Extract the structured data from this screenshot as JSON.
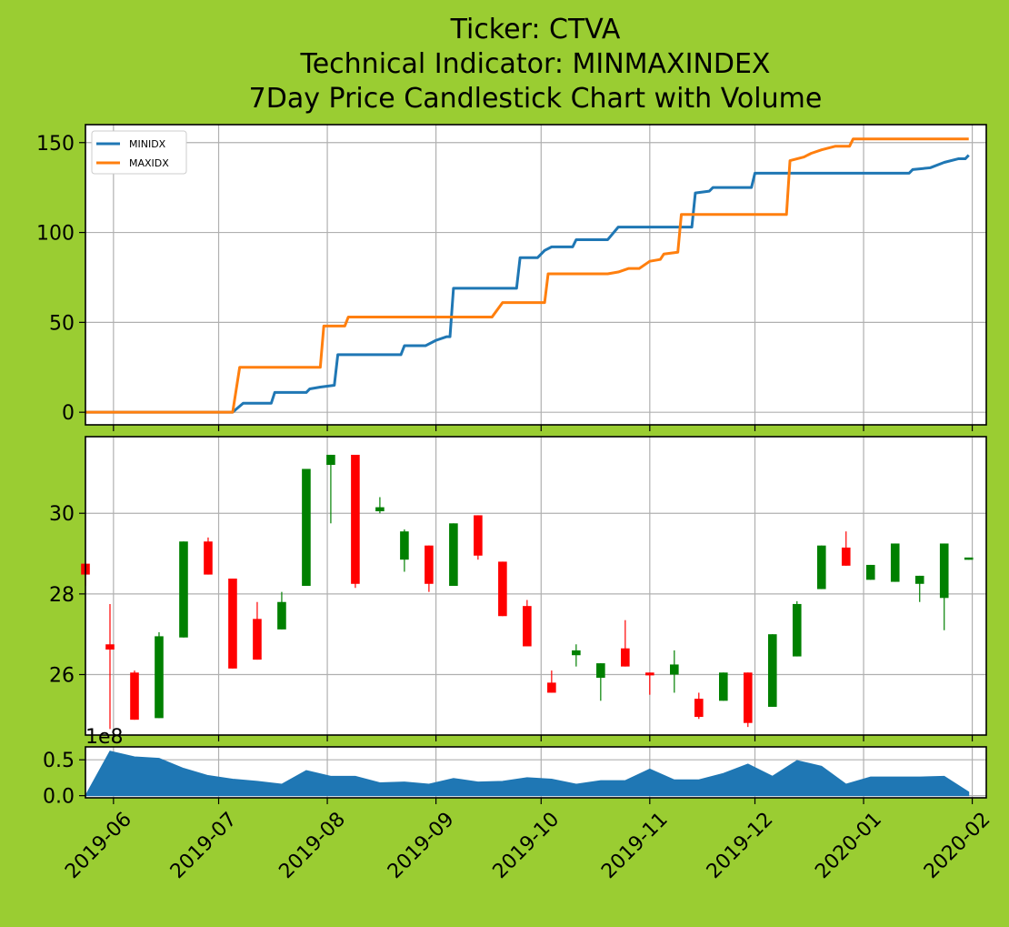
{
  "chart_data": {
    "type": "candlestick",
    "title_lines": [
      "Ticker: CTVA",
      "Technical Indicator: MINMAXINDEX",
      "7Day Price Candlestick Chart with Volume"
    ],
    "x_ticks": [
      "2019-06",
      "2019-07",
      "2019-08",
      "2019-09",
      "2019-10",
      "2019-11",
      "2019-12",
      "2020-01",
      "2020-02"
    ],
    "x_range": [
      "2019-05-24",
      "2020-02-05"
    ],
    "grid": true,
    "indicator": {
      "ylim": [
        -7,
        160
      ],
      "yticks": [
        0,
        50,
        100,
        150
      ],
      "legend_position": "upper-left",
      "series": [
        {
          "name": "MINIDX",
          "color": "#1f77b4",
          "points": [
            [
              "2019-05-24",
              0
            ],
            [
              "2019-07-05",
              0
            ],
            [
              "2019-07-08",
              5
            ],
            [
              "2019-07-16",
              5
            ],
            [
              "2019-07-17",
              11
            ],
            [
              "2019-07-26",
              11
            ],
            [
              "2019-07-27",
              13
            ],
            [
              "2019-07-30",
              14
            ],
            [
              "2019-08-03",
              15
            ],
            [
              "2019-08-04",
              32
            ],
            [
              "2019-08-22",
              32
            ],
            [
              "2019-08-23",
              37
            ],
            [
              "2019-08-29",
              37
            ],
            [
              "2019-09-01",
              40
            ],
            [
              "2019-09-04",
              42
            ],
            [
              "2019-09-05",
              42
            ],
            [
              "2019-09-06",
              69
            ],
            [
              "2019-09-24",
              69
            ],
            [
              "2019-09-25",
              86
            ],
            [
              "2019-09-30",
              86
            ],
            [
              "2019-10-02",
              90
            ],
            [
              "2019-10-04",
              92
            ],
            [
              "2019-10-10",
              92
            ],
            [
              "2019-10-11",
              96
            ],
            [
              "2019-10-20",
              96
            ],
            [
              "2019-10-23",
              103
            ],
            [
              "2019-11-13",
              103
            ],
            [
              "2019-11-14",
              122
            ],
            [
              "2019-11-18",
              123
            ],
            [
              "2019-11-19",
              125
            ],
            [
              "2019-11-30",
              125
            ],
            [
              "2019-12-01",
              133
            ],
            [
              "2020-01-14",
              133
            ],
            [
              "2020-01-15",
              135
            ],
            [
              "2020-01-20",
              136
            ],
            [
              "2020-01-24",
              139
            ],
            [
              "2020-01-28",
              141
            ],
            [
              "2020-01-30",
              141
            ],
            [
              "2020-01-31",
              143
            ]
          ]
        },
        {
          "name": "MAXIDX",
          "color": "#ff7f0e",
          "points": [
            [
              "2019-05-24",
              0
            ],
            [
              "2019-07-05",
              0
            ],
            [
              "2019-07-07",
              25
            ],
            [
              "2019-07-30",
              25
            ],
            [
              "2019-07-31",
              48
            ],
            [
              "2019-08-06",
              48
            ],
            [
              "2019-08-07",
              53
            ],
            [
              "2019-09-17",
              53
            ],
            [
              "2019-09-20",
              61
            ],
            [
              "2019-10-02",
              61
            ],
            [
              "2019-10-03",
              77
            ],
            [
              "2019-10-20",
              77
            ],
            [
              "2019-10-23",
              78
            ],
            [
              "2019-10-26",
              80
            ],
            [
              "2019-10-29",
              80
            ],
            [
              "2019-11-01",
              84
            ],
            [
              "2019-11-04",
              85
            ],
            [
              "2019-11-05",
              88
            ],
            [
              "2019-11-09",
              89
            ],
            [
              "2019-11-10",
              110
            ],
            [
              "2019-12-10",
              110
            ],
            [
              "2019-12-11",
              140
            ],
            [
              "2019-12-15",
              142
            ],
            [
              "2019-12-17",
              144
            ],
            [
              "2019-12-20",
              146
            ],
            [
              "2019-12-24",
              148
            ],
            [
              "2019-12-28",
              148
            ],
            [
              "2019-12-29",
              152
            ],
            [
              "2020-01-31",
              152
            ]
          ]
        }
      ]
    },
    "price": {
      "ylim": [
        24.5,
        31.9
      ],
      "yticks": [
        26,
        28,
        30
      ],
      "up_color": "#008000",
      "down_color": "#ff0000",
      "candles": [
        {
          "date": "2019-05-24",
          "open": 28.75,
          "high": 28.75,
          "low": 28.2,
          "close": 28.48
        },
        {
          "date": "2019-05-31",
          "open": 26.75,
          "high": 27.75,
          "low": 24.65,
          "close": 26.62
        },
        {
          "date": "2019-06-07",
          "open": 26.05,
          "high": 26.1,
          "low": 24.88,
          "close": 24.88
        },
        {
          "date": "2019-06-14",
          "open": 24.92,
          "high": 27.05,
          "low": 24.92,
          "close": 26.95
        },
        {
          "date": "2019-06-21",
          "open": 26.92,
          "high": 29.3,
          "low": 26.92,
          "close": 29.3
        },
        {
          "date": "2019-06-28",
          "open": 29.3,
          "high": 29.4,
          "low": 28.48,
          "close": 28.48
        },
        {
          "date": "2019-07-05",
          "open": 28.38,
          "high": 28.38,
          "low": 26.15,
          "close": 26.15
        },
        {
          "date": "2019-07-12",
          "open": 27.38,
          "high": 27.8,
          "low": 26.37,
          "close": 26.37
        },
        {
          "date": "2019-07-19",
          "open": 27.12,
          "high": 28.05,
          "low": 27.12,
          "close": 27.8
        },
        {
          "date": "2019-07-26",
          "open": 28.2,
          "high": 31.1,
          "low": 28.2,
          "close": 31.1
        },
        {
          "date": "2019-08-02",
          "open": 31.2,
          "high": 31.45,
          "low": 29.75,
          "close": 31.45
        },
        {
          "date": "2019-08-09",
          "open": 31.45,
          "high": 31.45,
          "low": 28.15,
          "close": 28.25
        },
        {
          "date": "2019-08-16",
          "open": 30.05,
          "high": 30.4,
          "low": 30.0,
          "close": 30.15
        },
        {
          "date": "2019-08-23",
          "open": 28.85,
          "high": 29.6,
          "low": 28.55,
          "close": 29.55
        },
        {
          "date": "2019-08-30",
          "open": 29.2,
          "high": 29.2,
          "low": 28.05,
          "close": 28.25
        },
        {
          "date": "2019-09-06",
          "open": 28.2,
          "high": 29.75,
          "low": 28.2,
          "close": 29.75
        },
        {
          "date": "2019-09-13",
          "open": 29.95,
          "high": 29.95,
          "low": 28.85,
          "close": 28.95
        },
        {
          "date": "2019-09-20",
          "open": 28.8,
          "high": 28.8,
          "low": 27.45,
          "close": 27.45
        },
        {
          "date": "2019-09-27",
          "open": 27.7,
          "high": 27.85,
          "low": 26.7,
          "close": 26.7
        },
        {
          "date": "2019-10-04",
          "open": 25.8,
          "high": 26.1,
          "low": 25.55,
          "close": 25.55
        },
        {
          "date": "2019-10-11",
          "open": 26.48,
          "high": 26.75,
          "low": 26.2,
          "close": 26.6
        },
        {
          "date": "2019-10-18",
          "open": 25.92,
          "high": 26.28,
          "low": 25.35,
          "close": 26.28
        },
        {
          "date": "2019-10-25",
          "open": 26.65,
          "high": 27.35,
          "low": 26.2,
          "close": 26.2
        },
        {
          "date": "2019-11-01",
          "open": 26.05,
          "high": 26.05,
          "low": 25.5,
          "close": 25.98
        },
        {
          "date": "2019-11-08",
          "open": 26.0,
          "high": 26.6,
          "low": 25.55,
          "close": 26.25
        },
        {
          "date": "2019-11-15",
          "open": 25.4,
          "high": 25.55,
          "low": 24.9,
          "close": 24.95
        },
        {
          "date": "2019-11-22",
          "open": 25.35,
          "high": 26.05,
          "low": 25.35,
          "close": 26.05
        },
        {
          "date": "2019-11-29",
          "open": 26.05,
          "high": 26.05,
          "low": 24.7,
          "close": 24.8
        },
        {
          "date": "2019-12-06",
          "open": 25.2,
          "high": 27.0,
          "low": 25.2,
          "close": 27.0
        },
        {
          "date": "2019-12-13",
          "open": 26.45,
          "high": 27.82,
          "low": 26.45,
          "close": 27.75
        },
        {
          "date": "2019-12-20",
          "open": 28.12,
          "high": 29.2,
          "low": 28.12,
          "close": 29.2
        },
        {
          "date": "2019-12-27",
          "open": 29.15,
          "high": 29.55,
          "low": 28.7,
          "close": 28.7
        },
        {
          "date": "2020-01-03",
          "open": 28.35,
          "high": 28.72,
          "low": 28.35,
          "close": 28.72
        },
        {
          "date": "2020-01-10",
          "open": 28.3,
          "high": 29.25,
          "low": 28.3,
          "close": 29.25
        },
        {
          "date": "2020-01-17",
          "open": 28.25,
          "high": 28.45,
          "low": 27.8,
          "close": 28.45
        },
        {
          "date": "2020-01-24",
          "open": 27.9,
          "high": 29.25,
          "low": 27.1,
          "close": 29.25
        },
        {
          "date": "2020-01-31",
          "open": 28.85,
          "high": 28.9,
          "low": 28.85,
          "close": 28.9
        }
      ]
    },
    "volume": {
      "multiplier_label": "1e8",
      "ylim": [
        -0.03,
        0.68
      ],
      "yticks": [
        0.0,
        0.5
      ],
      "ytick_labels": [
        "0.0",
        "0.5"
      ],
      "color": "#1f77b4",
      "points": [
        [
          "2019-05-24",
          0.0
        ],
        [
          "2019-05-31",
          0.62
        ],
        [
          "2019-06-07",
          0.54
        ],
        [
          "2019-06-14",
          0.52
        ],
        [
          "2019-06-21",
          0.38
        ],
        [
          "2019-06-28",
          0.28
        ],
        [
          "2019-07-05",
          0.23
        ],
        [
          "2019-07-12",
          0.2
        ],
        [
          "2019-07-19",
          0.16
        ],
        [
          "2019-07-26",
          0.35
        ],
        [
          "2019-08-02",
          0.27
        ],
        [
          "2019-08-09",
          0.27
        ],
        [
          "2019-08-16",
          0.18
        ],
        [
          "2019-08-23",
          0.19
        ],
        [
          "2019-08-30",
          0.16
        ],
        [
          "2019-09-06",
          0.24
        ],
        [
          "2019-09-13",
          0.19
        ],
        [
          "2019-09-20",
          0.2
        ],
        [
          "2019-09-27",
          0.25
        ],
        [
          "2019-10-04",
          0.23
        ],
        [
          "2019-10-11",
          0.16
        ],
        [
          "2019-10-18",
          0.21
        ],
        [
          "2019-10-25",
          0.21
        ],
        [
          "2019-11-01",
          0.37
        ],
        [
          "2019-11-08",
          0.22
        ],
        [
          "2019-11-15",
          0.22
        ],
        [
          "2019-11-22",
          0.31
        ],
        [
          "2019-11-29",
          0.44
        ],
        [
          "2019-12-06",
          0.27
        ],
        [
          "2019-12-13",
          0.49
        ],
        [
          "2019-12-20",
          0.41
        ],
        [
          "2019-12-27",
          0.16
        ],
        [
          "2020-01-03",
          0.26
        ],
        [
          "2020-01-10",
          0.26
        ],
        [
          "2020-01-17",
          0.26
        ],
        [
          "2020-01-24",
          0.27
        ],
        [
          "2020-01-31",
          0.05
        ]
      ]
    }
  }
}
